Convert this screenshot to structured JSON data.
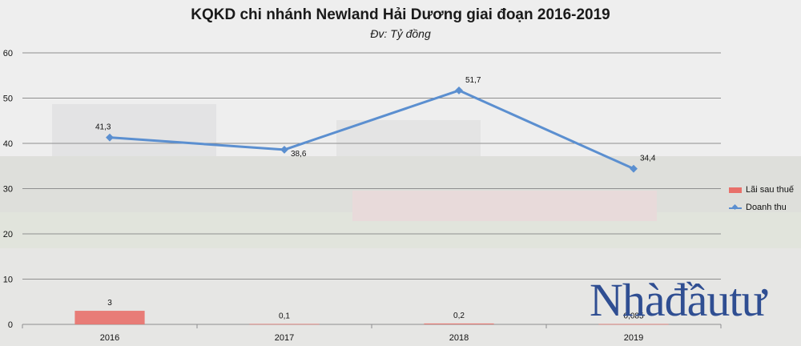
{
  "chart_data": {
    "type": "bar",
    "title": "KQKD chi nhánh Newland Hải Dương giai đoạn 2016-2019",
    "subtitle": "Đv: Tỷ đồng",
    "categories": [
      "2016",
      "2017",
      "2018",
      "2019"
    ],
    "ylim": [
      0,
      60
    ],
    "yticks": [
      0,
      10,
      20,
      30,
      40,
      50,
      60
    ],
    "grid": true,
    "legend_position": "right",
    "series": [
      {
        "name": "Lãi sau thuế",
        "kind": "bar",
        "color": "#e8706a",
        "values": [
          3,
          0.1,
          0.2,
          0.085
        ],
        "labels": [
          "3",
          "0,1",
          "0,2",
          "0,085"
        ]
      },
      {
        "name": "Doanh thu",
        "kind": "line",
        "color": "#5b8fd0",
        "values": [
          41.3,
          38.6,
          51.7,
          34.4
        ],
        "labels": [
          "41,3",
          "38,6",
          "51,7",
          "34,4"
        ]
      }
    ]
  },
  "watermark": "Nhadautu"
}
